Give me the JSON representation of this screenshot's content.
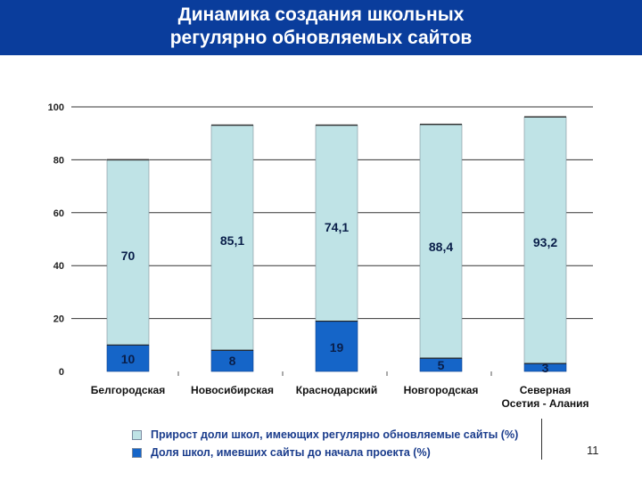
{
  "title": {
    "line1": "Динамика создания школьных",
    "line2": "регулярно обновляемых сайтов"
  },
  "colors": {
    "header_bg": "#0a3d9c",
    "increase": "#bfe3e6",
    "initial": "#1565c8",
    "label_text": "#0a1f4a"
  },
  "chart_data": {
    "type": "bar",
    "stacked": true,
    "title": "Динамика создания школьных регулярно обновляемых сайтов",
    "categories": [
      "Белгородская",
      "Новосибирская",
      "Краснодарский",
      "Новгородская",
      "Северная Осетия - Алания"
    ],
    "category_lines": [
      [
        "Белгородская"
      ],
      [
        "Новосибирская"
      ],
      [
        "Краснодарский"
      ],
      [
        "Новгородская"
      ],
      [
        "Северная",
        "Осетия - Алания"
      ]
    ],
    "series": [
      {
        "name": "Доля школ, имевших сайты до начала проекта (%)",
        "values": [
          10,
          8,
          19,
          5,
          3
        ],
        "labels": [
          "10",
          "8",
          "19",
          "5",
          "3"
        ],
        "color": "#1565c8"
      },
      {
        "name": "Прирост доли школ, имеющих регулярно обновляемые сайты (%)",
        "values": [
          70,
          85.1,
          74.1,
          88.4,
          93.2
        ],
        "labels": [
          "70",
          "85,1",
          "74,1",
          "88,4",
          "93,2"
        ],
        "color": "#bfe3e6"
      }
    ],
    "y_ticks": [
      0,
      20,
      40,
      60,
      80,
      100
    ],
    "ylim": [
      0,
      100
    ],
    "grid": true,
    "legend_position": "bottom"
  },
  "legend": {
    "item1": "Прирост доли школ, имеющих регулярно обновляемые сайты (%)",
    "item2": "Доля школ, имевших сайты до начала проекта (%)"
  },
  "page_number": "11"
}
